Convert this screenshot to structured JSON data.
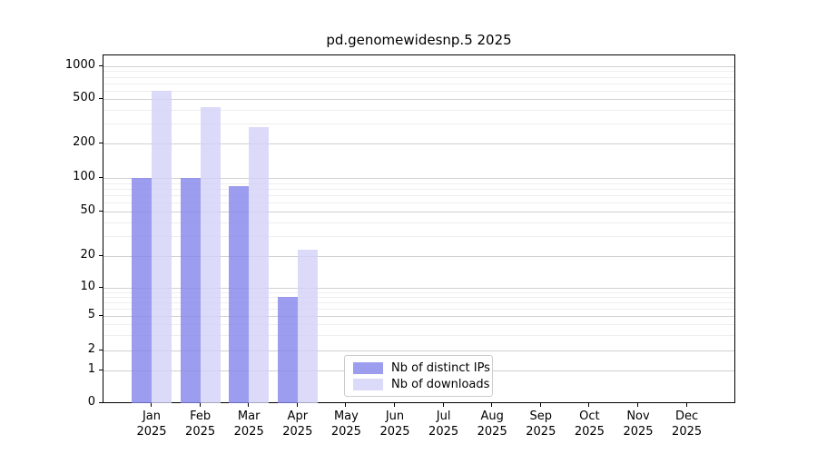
{
  "chart_data": {
    "type": "bar",
    "title": "pd.genomewidesnp.5 2025",
    "months": [
      "Jan",
      "Feb",
      "Mar",
      "Apr",
      "May",
      "Jun",
      "Jul",
      "Aug",
      "Sep",
      "Oct",
      "Nov",
      "Dec"
    ],
    "year": "2025",
    "series": [
      {
        "name": "Nb of distinct IPs",
        "color": "rgba(133,133,235,0.8)",
        "values": [
          100,
          100,
          85,
          8,
          0,
          0,
          0,
          0,
          0,
          0,
          0,
          0
        ]
      },
      {
        "name": "Nb of downloads",
        "color": "rgba(210,210,248,0.8)",
        "values": [
          600,
          420,
          280,
          23,
          0,
          0,
          0,
          0,
          0,
          0,
          0,
          0
        ]
      }
    ],
    "y_axis": {
      "scale": "symlog",
      "ticks": [
        0,
        1,
        2,
        5,
        10,
        20,
        50,
        100,
        200,
        500,
        1000
      ],
      "minor_gridlines": true
    },
    "x_axis": {
      "tick_count": 12
    },
    "grid": true,
    "legend_position": "lower center",
    "ylim": [
      0,
      1300
    ]
  }
}
